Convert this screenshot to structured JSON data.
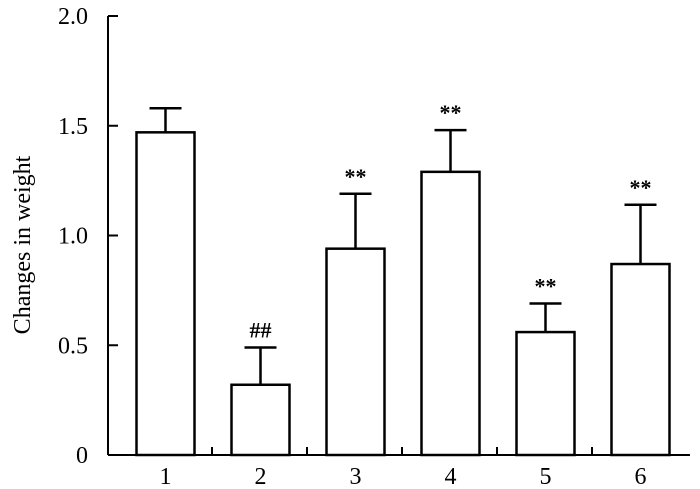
{
  "chart_data": {
    "type": "bar",
    "ylabel": "Changes in weight",
    "xlabel": "",
    "ylim": [
      0,
      2.0
    ],
    "yticks": [
      "0",
      "0.5",
      "1.0",
      "1.5",
      "2.0"
    ],
    "categories": [
      "1",
      "2",
      "3",
      "4",
      "5",
      "6"
    ],
    "values": [
      1.47,
      0.32,
      0.94,
      1.29,
      0.56,
      0.87
    ],
    "errors": [
      0.11,
      0.17,
      0.25,
      0.19,
      0.13,
      0.27
    ],
    "annotations": [
      "",
      "##",
      "**",
      "**",
      "**",
      "**"
    ],
    "grid": false,
    "colors": {
      "bar_fill": "#ffffff",
      "bar_stroke": "#000000",
      "axis": "#000000"
    }
  }
}
